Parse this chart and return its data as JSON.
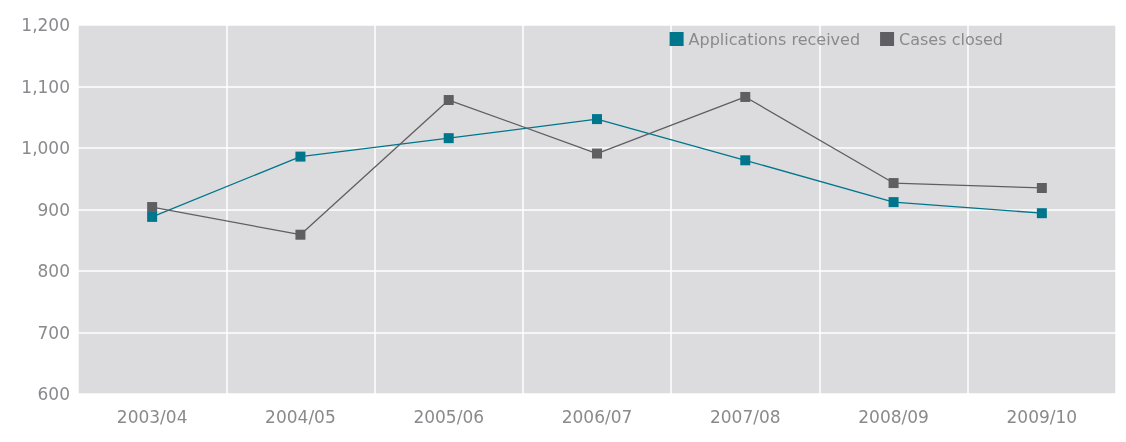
{
  "chart_data": {
    "type": "line",
    "categories": [
      "2003/04",
      "2004/05",
      "2005/06",
      "2006/07",
      "2007/08",
      "2008/09",
      "2009/10"
    ],
    "series": [
      {
        "name": "Applications received",
        "color": "#00768c",
        "values": [
          888,
          986,
          1016,
          1047,
          980,
          912,
          894
        ]
      },
      {
        "name": "Cases closed",
        "color": "#5f5f63",
        "values": [
          904,
          859,
          1078,
          991,
          1083,
          943,
          935
        ]
      }
    ],
    "ylim": [
      600,
      1200
    ],
    "yticks": [
      {
        "value": 600,
        "label": "600"
      },
      {
        "value": 700,
        "label": "700"
      },
      {
        "value": 800,
        "label": "800"
      },
      {
        "value": 900,
        "label": "900"
      },
      {
        "value": 1000,
        "label": "1,000"
      },
      {
        "value": 1100,
        "label": "1,100"
      },
      {
        "value": 1200,
        "label": "1,200"
      }
    ],
    "grid": true,
    "legend": "top right",
    "marker": "square"
  }
}
